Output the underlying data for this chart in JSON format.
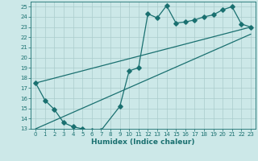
{
  "xlabel": "Humidex (Indice chaleur)",
  "bg_color": "#cce8e8",
  "line_color": "#1a7070",
  "grid_color": "#aacccc",
  "xlim": [
    -0.5,
    23.5
  ],
  "ylim": [
    13,
    25.5
  ],
  "xticks": [
    0,
    1,
    2,
    3,
    4,
    5,
    6,
    7,
    8,
    9,
    10,
    11,
    12,
    13,
    14,
    15,
    16,
    17,
    18,
    19,
    20,
    21,
    22,
    23
  ],
  "yticks": [
    13,
    14,
    15,
    16,
    17,
    18,
    19,
    20,
    21,
    22,
    23,
    24,
    25
  ],
  "series1_x": [
    0,
    1,
    2,
    3,
    4,
    5,
    6,
    7,
    9,
    10,
    11,
    12,
    13,
    14,
    15,
    16,
    17,
    18,
    19,
    20,
    21,
    22,
    23
  ],
  "series1_y": [
    17.5,
    15.8,
    14.9,
    13.6,
    13.2,
    13.0,
    12.85,
    12.85,
    15.2,
    18.7,
    19.0,
    24.3,
    23.9,
    25.1,
    23.4,
    23.5,
    23.7,
    24.0,
    24.2,
    24.7,
    25.0,
    23.3,
    23.0
  ],
  "trend1_x": [
    0,
    23
  ],
  "trend1_y": [
    17.5,
    23.0
  ],
  "trend2_x": [
    0,
    23
  ],
  "trend2_y": [
    13.0,
    22.3
  ],
  "marker_size": 2.8,
  "marker": "D"
}
